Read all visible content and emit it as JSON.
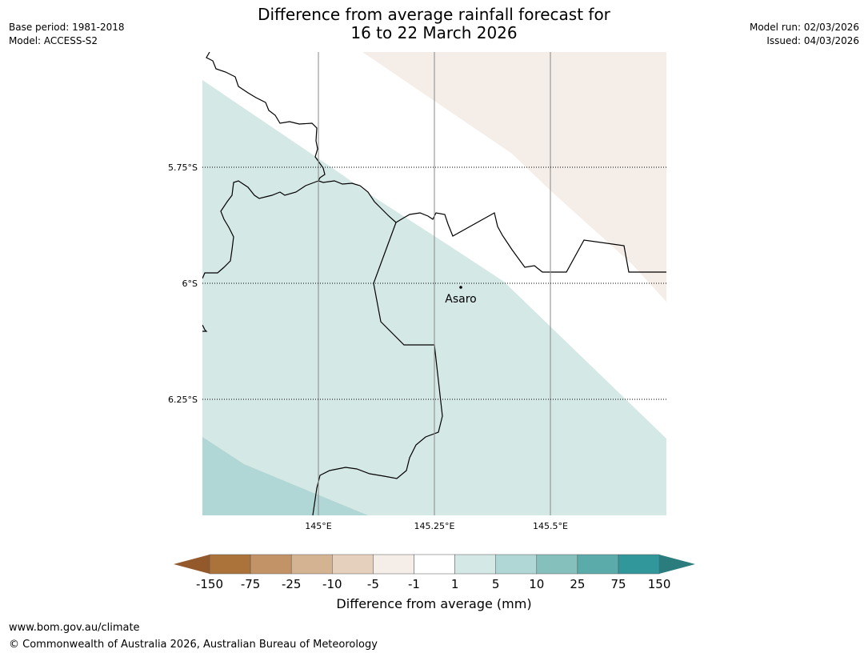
{
  "header": {
    "title_line1": "Difference from average rainfall forecast for",
    "title_line2": "16 to 22 March 2026",
    "base_period": "Base period: 1981-2018",
    "model": "Model: ACCESS-S2",
    "model_run": "Model run: 02/03/2026",
    "issued": "Issued: 04/03/2026"
  },
  "map": {
    "lat_labels": [
      "5.75°S",
      "6°S",
      "6.25°S"
    ],
    "lon_labels": [
      "145°E",
      "145.25°E",
      "145.5°E"
    ],
    "place": {
      "name": "Asaro"
    },
    "colors": {
      "below_light": "#f4ede8",
      "above_1_5": "#d4e8e6",
      "above_5_10": "#b0d6d5",
      "boundary": "#000000",
      "gridline": "#888888"
    }
  },
  "legend": {
    "title": "Difference from average (mm)",
    "tick_labels": [
      "-150",
      "-75",
      "-25",
      "-10",
      "-5",
      "-1",
      "1",
      "5",
      "10",
      "25",
      "75",
      "150"
    ],
    "colors": [
      "#ab733a",
      "#c39368",
      "#d4b393",
      "#e4d0bd",
      "#f4ede8",
      "#ffffff",
      "#d4e8e6",
      "#b0d6d5",
      "#85c0bd",
      "#5aaba9",
      "#31979a"
    ],
    "under_color": "#93592a",
    "over_color": "#2a7c7d"
  },
  "footer": {
    "url": "www.bom.gov.au/climate",
    "copyright": "© Commonwealth of Australia 2026, Australian Bureau of Meteorology"
  }
}
